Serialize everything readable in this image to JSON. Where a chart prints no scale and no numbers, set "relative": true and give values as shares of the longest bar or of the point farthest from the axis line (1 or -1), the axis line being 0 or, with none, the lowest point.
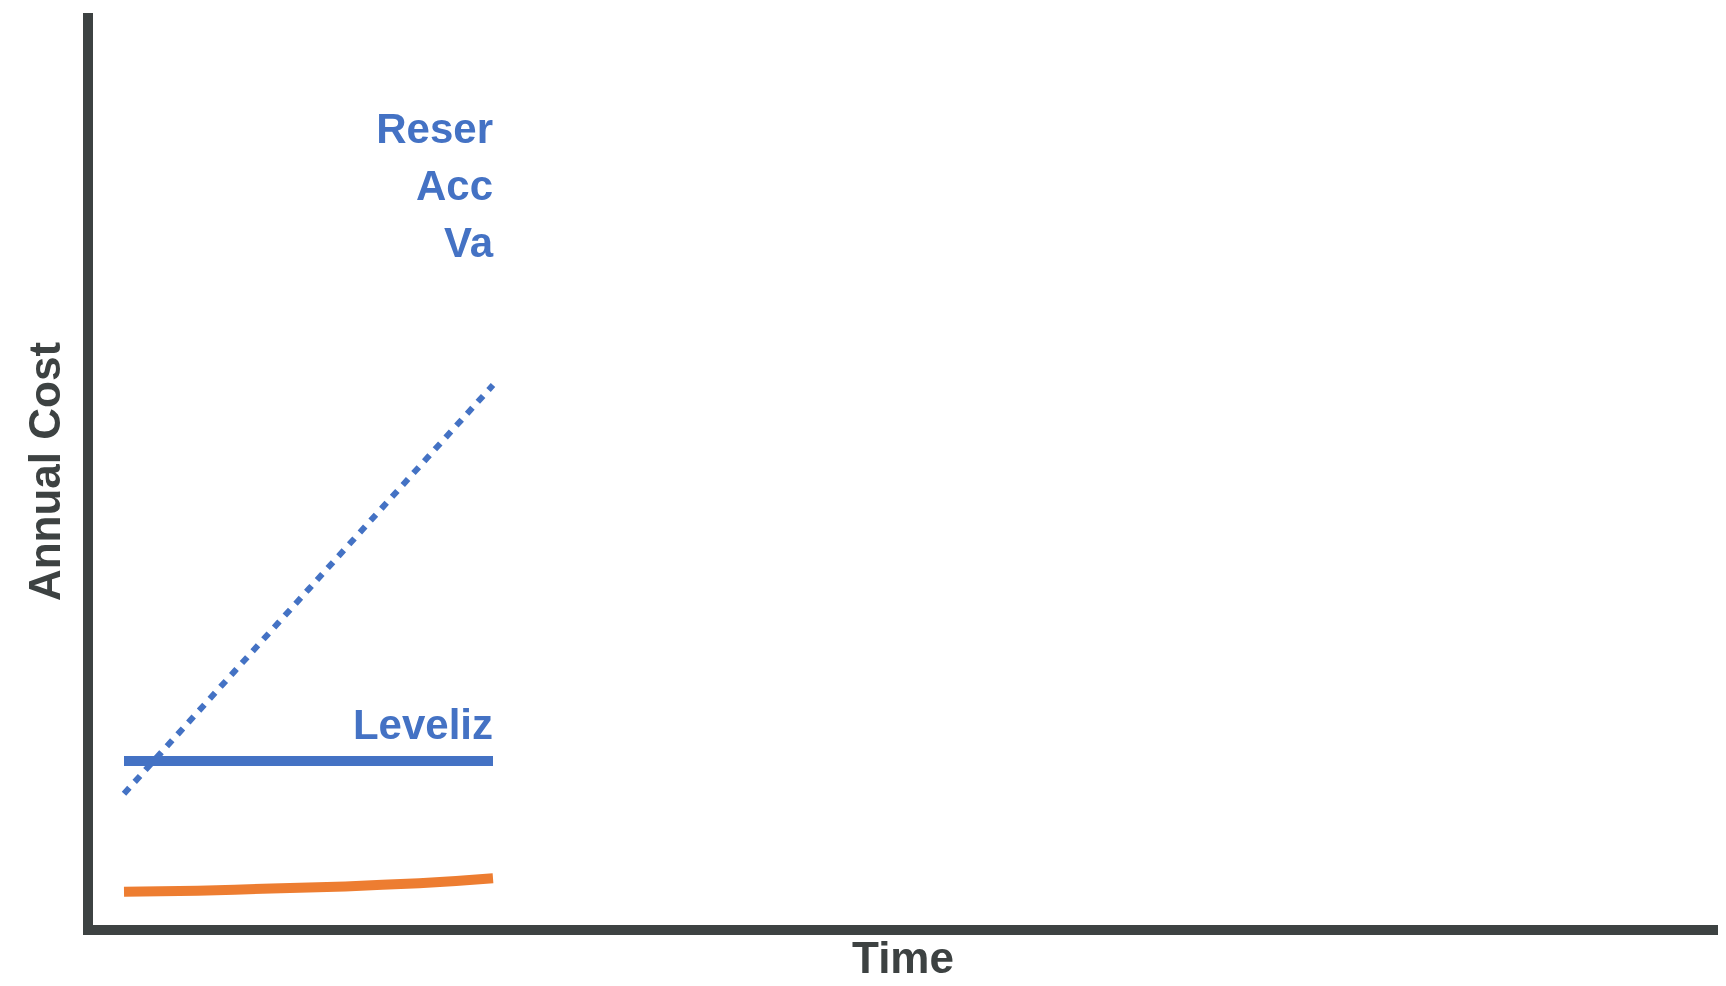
{
  "chart_data": {
    "type": "line",
    "xlabel": "Time",
    "ylabel": "Annual Cost",
    "relative": true,
    "marker": "none",
    "categories": [
      null,
      null,
      null,
      null,
      null,
      null,
      null,
      null,
      null,
      null,
      null,
      null,
      null,
      null,
      null,
      null,
      null,
      null,
      null,
      null,
      null,
      null,
      null,
      null,
      null,
      null,
      null,
      null,
      null,
      null,
      null,
      null,
      null,
      null,
      null,
      null,
      null,
      null,
      null,
      null
    ],
    "series": [
      {
        "name": "Reser\nAcc\nVa",
        "color": "#4472c4",
        "line_style": "dotted",
        "values": [
          0.25,
          0.325,
          0.4,
          0.475,
          0.55,
          0.625,
          0.7,
          0.775,
          0.85,
          0.925,
          1,
          null,
          null,
          null,
          null,
          null,
          null,
          null,
          null,
          null,
          null,
          null,
          null,
          null,
          null,
          null,
          null,
          null,
          null,
          null,
          null,
          null,
          null,
          null,
          null,
          null,
          null,
          null,
          null,
          null
        ]
      },
      {
        "name": "Leveliz",
        "color": "#4472c4",
        "line_style": "solid",
        "values": [
          0.31,
          0.31,
          0.31,
          0.31,
          0.31,
          0.31,
          0.31,
          0.31,
          0.31,
          0.31,
          0.31,
          null,
          null,
          null,
          null,
          null,
          null,
          null,
          null,
          null,
          null,
          null,
          null,
          null,
          null,
          null,
          null,
          null,
          null,
          null,
          null,
          null,
          null,
          null,
          null,
          null,
          null,
          null,
          null,
          null
        ]
      },
      {
        "color": "#ed7d31",
        "line_style": "solid",
        "values": [
          0.07,
          0.071,
          0.072,
          0.074,
          0.076,
          0.078,
          0.08,
          0.083,
          0.086,
          0.09,
          0.095,
          null,
          null,
          null,
          null,
          null,
          null,
          null,
          null,
          null,
          null,
          null,
          null,
          null,
          null,
          null,
          null,
          null,
          null,
          null,
          null,
          null,
          null,
          null,
          null,
          null,
          null,
          null,
          null,
          null
        ]
      }
    ]
  }
}
